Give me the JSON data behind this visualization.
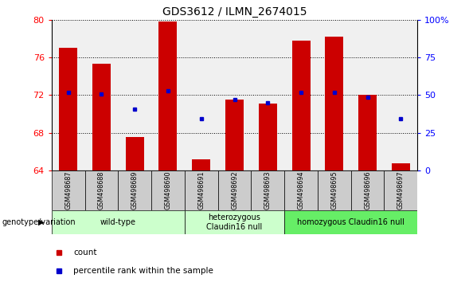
{
  "title": "GDS3612 / ILMN_2674015",
  "samples": [
    "GSM498687",
    "GSM498688",
    "GSM498689",
    "GSM498690",
    "GSM498691",
    "GSM498692",
    "GSM498693",
    "GSM498694",
    "GSM498695",
    "GSM498696",
    "GSM498697"
  ],
  "bar_values": [
    77.0,
    75.3,
    67.6,
    79.8,
    65.2,
    71.5,
    71.1,
    77.8,
    78.2,
    72.0,
    64.8
  ],
  "dot_values": [
    72.3,
    72.1,
    70.5,
    72.5,
    69.5,
    71.5,
    71.2,
    72.3,
    72.3,
    71.8,
    69.5
  ],
  "ylim": [
    64,
    80
  ],
  "yticks": [
    64,
    68,
    72,
    76,
    80
  ],
  "y2_ticks": [
    0,
    25,
    50,
    75,
    100
  ],
  "y2_labels": [
    "0",
    "25",
    "50",
    "75",
    "100%"
  ],
  "bar_color": "#cc0000",
  "dot_color": "#0000cc",
  "bg_plot": "#f0f0f0",
  "bg_samples": "#cccccc",
  "group_labels": [
    "wild-type",
    "heterozygous\nClaudin16 null",
    "homozygous Claudin16 null"
  ],
  "group_ranges": [
    [
      0,
      3
    ],
    [
      4,
      6
    ],
    [
      7,
      10
    ]
  ],
  "group_colors": [
    "#ccffcc",
    "#ccffcc",
    "#66ee66"
  ],
  "genotype_label": "genotype/variation",
  "legend_count": "count",
  "legend_percentile": "percentile rank within the sample"
}
